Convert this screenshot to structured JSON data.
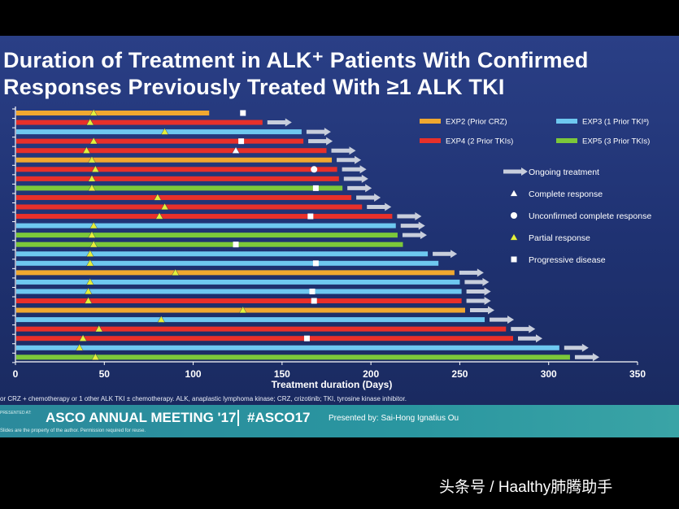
{
  "slide": {
    "title_line1": "Duration of Treatment in ALK⁺ Patients With Confirmed",
    "title_line2": "Responses Previously Treated With ≥1 ALK TKI",
    "footnote": "or CRZ + chemotherapy or 1 other ALK TKI ± chemotherapy. ALK, anaplastic lymphoma kinase; CRZ, crizotinib; TKI, tyrosine kinase inhibitor.",
    "footer": {
      "presented_at": "PRESENTED AT:",
      "meeting_name": "ASCO ANNUAL MEETING '17",
      "hashtag": "#ASCO17",
      "presenter": "Presented by: Sai-Hong Ignatius Ou",
      "disclaimer": "Slides are the property of the author. Permission required for reuse."
    }
  },
  "watermark": "头条号 / Haalthy肺腾助手",
  "chart_data": {
    "type": "bar",
    "orientation": "horizontal",
    "xlabel": "Treatment duration (Days)",
    "xlim": [
      0,
      350
    ],
    "xticks": [
      0,
      50,
      100,
      150,
      200,
      250,
      300,
      350
    ],
    "grid": false,
    "legend_position": "top-right",
    "groups": [
      {
        "key": "EXP2",
        "label": "EXP2 (Prior CRZ)",
        "color": "#f0a830"
      },
      {
        "key": "EXP3",
        "label": "EXP3 (1 Prior TKIᵃ)",
        "color": "#6ec8f0"
      },
      {
        "key": "EXP4",
        "label": "EXP4 (2 Prior TKIs)",
        "color": "#e8302a"
      },
      {
        "key": "EXP5",
        "label": "EXP5 (3 Prior TKIs)",
        "color": "#7cc83a"
      }
    ],
    "markers": [
      {
        "key": "ongoing",
        "label": "Ongoing treatment"
      },
      {
        "key": "cr",
        "label": "Complete response"
      },
      {
        "key": "ucr",
        "label": "Unconfirmed complete response"
      },
      {
        "key": "pr",
        "label": "Partial response"
      },
      {
        "key": "pd",
        "label": "Progressive disease"
      }
    ],
    "patients": [
      {
        "group": "EXP2",
        "duration": 109,
        "ongoing": false,
        "pr": 44,
        "pd": 128
      },
      {
        "group": "EXP4",
        "duration": 139,
        "ongoing": true,
        "pr": 42
      },
      {
        "group": "EXP3",
        "duration": 161,
        "ongoing": true,
        "pr": 84
      },
      {
        "group": "EXP4",
        "duration": 162,
        "ongoing": true,
        "pr": 44,
        "pd": 127
      },
      {
        "group": "EXP4",
        "duration": 175,
        "ongoing": true,
        "pr": 40,
        "cr": 124
      },
      {
        "group": "EXP2",
        "duration": 178,
        "ongoing": true,
        "pr": 43
      },
      {
        "group": "EXP4",
        "duration": 181,
        "ongoing": true,
        "pr": 45,
        "ucr": 168
      },
      {
        "group": "EXP4",
        "duration": 182,
        "ongoing": true,
        "pr": 43
      },
      {
        "group": "EXP5",
        "duration": 184,
        "ongoing": true,
        "pr": 43,
        "pd": 169
      },
      {
        "group": "EXP4",
        "duration": 189,
        "ongoing": true,
        "pr": 80
      },
      {
        "group": "EXP4",
        "duration": 195,
        "ongoing": true,
        "pr": 84
      },
      {
        "group": "EXP4",
        "duration": 212,
        "ongoing": true,
        "pr": 81,
        "pd": 166
      },
      {
        "group": "EXP3",
        "duration": 214,
        "ongoing": true,
        "pr": 44
      },
      {
        "group": "EXP5",
        "duration": 215,
        "ongoing": true,
        "pr": 43
      },
      {
        "group": "EXP5",
        "duration": 218,
        "ongoing": false,
        "pr": 44,
        "pd": 124
      },
      {
        "group": "EXP3",
        "duration": 232,
        "ongoing": true,
        "pr": 42
      },
      {
        "group": "EXP3",
        "duration": 238,
        "ongoing": false,
        "pr": 42,
        "pd": 169
      },
      {
        "group": "EXP2",
        "duration": 247,
        "ongoing": true,
        "pr": 90
      },
      {
        "group": "EXP3",
        "duration": 250,
        "ongoing": true,
        "pr": 42
      },
      {
        "group": "EXP3",
        "duration": 251,
        "ongoing": true,
        "pr": 41,
        "pd": 167
      },
      {
        "group": "EXP4",
        "duration": 251,
        "ongoing": true,
        "pr": 41,
        "pd": 168
      },
      {
        "group": "EXP2",
        "duration": 253,
        "ongoing": true,
        "pr": 128
      },
      {
        "group": "EXP3",
        "duration": 264,
        "ongoing": true,
        "pr": 82
      },
      {
        "group": "EXP4",
        "duration": 276,
        "ongoing": true,
        "pr": 47
      },
      {
        "group": "EXP4",
        "duration": 280,
        "ongoing": true,
        "pr": 38,
        "pd": 164
      },
      {
        "group": "EXP3",
        "duration": 306,
        "ongoing": true,
        "pr": 36
      },
      {
        "group": "EXP5",
        "duration": 312,
        "ongoing": true,
        "pr": 45
      }
    ]
  }
}
